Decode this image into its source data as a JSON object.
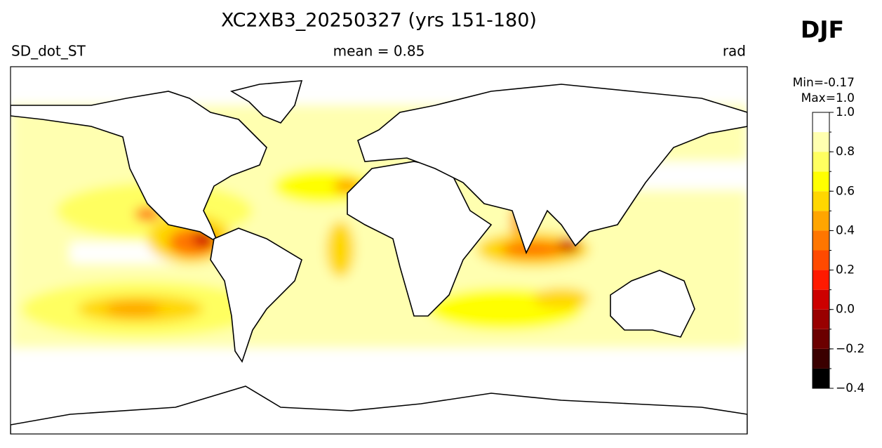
{
  "header": {
    "title": "XC2XB3_20250327 (yrs 151-180)",
    "season": "DJF",
    "left": "SD_dot_ST",
    "center": "mean = 0.85",
    "right": "rad",
    "min": "Min=-0.17",
    "max": "Max=1.0"
  },
  "colorbar": {
    "lim": [
      -0.4,
      1.0
    ],
    "levels": [
      -0.4,
      -0.3,
      -0.2,
      -0.1,
      0.0,
      0.1,
      0.2,
      0.3,
      0.4,
      0.5,
      0.6,
      0.7,
      0.8,
      0.9,
      1.0
    ],
    "colors": [
      "#000000",
      "#3a0000",
      "#6b0000",
      "#990000",
      "#cc0000",
      "#ff1a00",
      "#ff4a00",
      "#ff7600",
      "#ffa500",
      "#ffd700",
      "#ffff00",
      "#ffff60",
      "#ffffb0",
      "#ffffff"
    ],
    "ticks": [
      {
        "value": -0.4,
        "label": "−0.4"
      },
      {
        "value": -0.2,
        "label": "−0.2"
      },
      {
        "value": 0,
        "label": "0.0"
      },
      0.2,
      0.4,
      0.6,
      0.8,
      {
        "value": 1,
        "label": "1.0"
      }
    ]
  }
}
